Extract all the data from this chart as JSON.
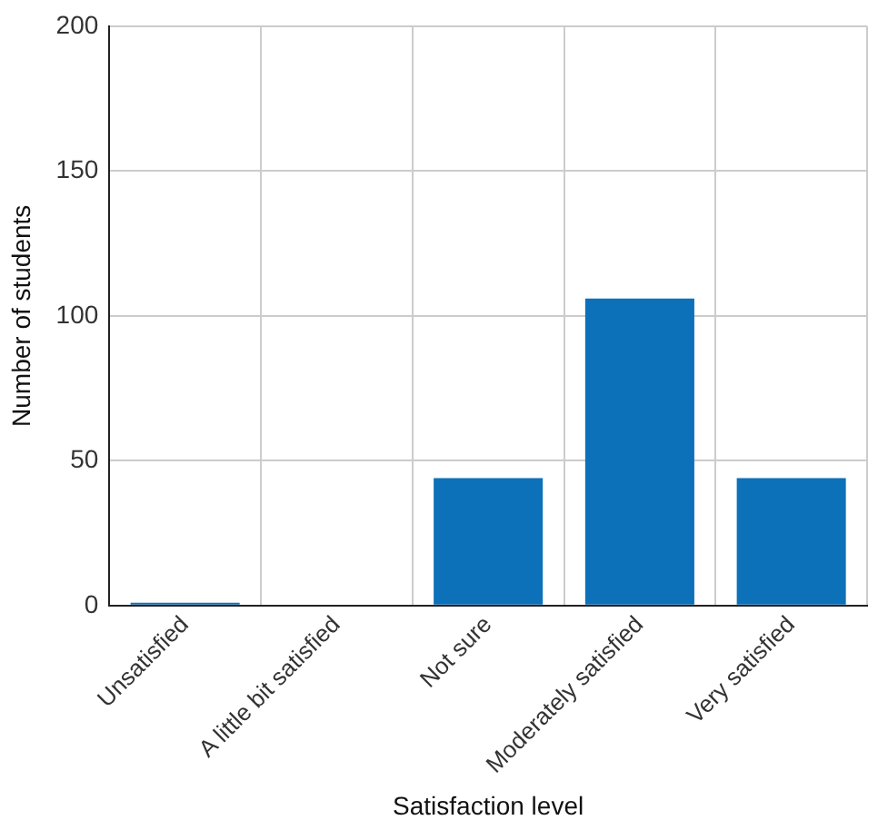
{
  "chart_data": {
    "type": "bar",
    "xlabel": "Satisfaction level",
    "ylabel": "Number of students",
    "categories": [
      "Unsatisfied",
      "A little bit satisfied",
      "Not sure",
      "Moderately satisfied",
      "Very satisfied"
    ],
    "values": [
      1,
      0,
      44,
      106,
      44
    ],
    "color": "#0c71b9",
    "ylim": [
      0,
      200
    ],
    "yticks": [
      0,
      50,
      100,
      150,
      200
    ],
    "grid": true,
    "legend": false
  }
}
